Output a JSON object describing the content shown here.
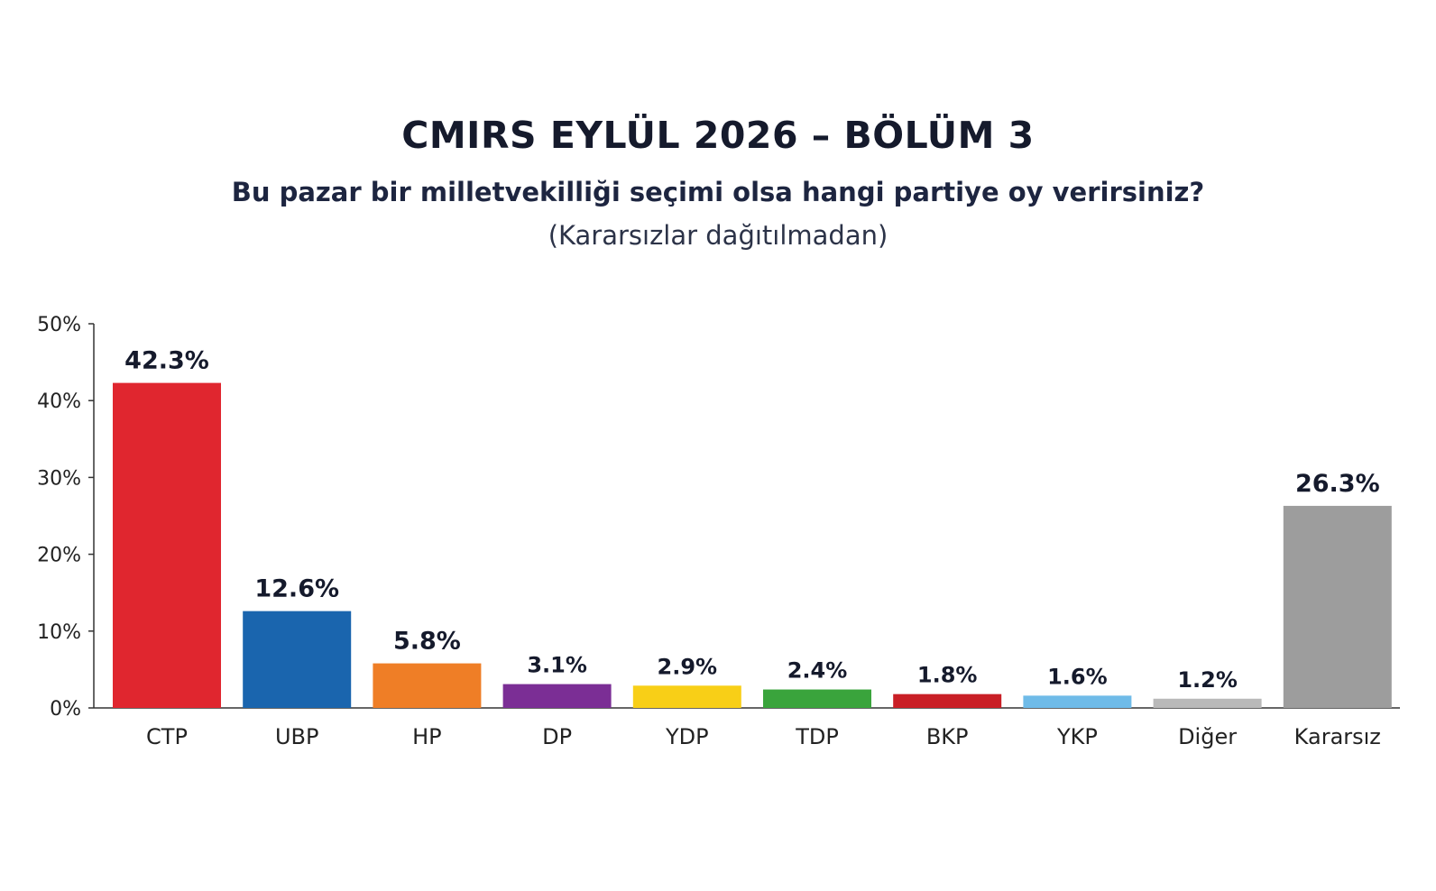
{
  "header": {
    "title": "CMIRS EYLÜL 2026 – BÖLÜM 3",
    "subtitle": "Bu pazar bir milletvekilliği seçimi olsa hangi partiye oy verirsiniz?",
    "note": "(Kararsızlar dağıtılmadan)"
  },
  "chart_data": {
    "type": "bar",
    "title": "CMIRS EYLÜL 2026 – BÖLÜM 3",
    "xlabel": "",
    "ylabel": "",
    "ylim": [
      0,
      50
    ],
    "yticks": [
      "0%",
      "10%",
      "20%",
      "30%",
      "40%",
      "50%"
    ],
    "grid": false,
    "categories": [
      "CTP",
      "UBP",
      "HP",
      "DP",
      "YDP",
      "TDP",
      "BKP",
      "YKP",
      "Diğer",
      "Kararsız"
    ],
    "values": [
      42.3,
      12.6,
      5.8,
      3.1,
      2.9,
      2.4,
      1.8,
      1.6,
      1.2,
      26.3
    ],
    "value_labels": [
      "42.3%",
      "12.6%",
      "5.8%",
      "3.1%",
      "2.9%",
      "2.4%",
      "1.8%",
      "1.6%",
      "1.2%",
      "26.3%"
    ],
    "colors": [
      "#e0262f",
      "#1a65ae",
      "#ef7e26",
      "#7b2e95",
      "#f8cf17",
      "#3aa43c",
      "#c91f26",
      "#6fbbe8",
      "#b9b9b9",
      "#9d9d9d"
    ]
  }
}
